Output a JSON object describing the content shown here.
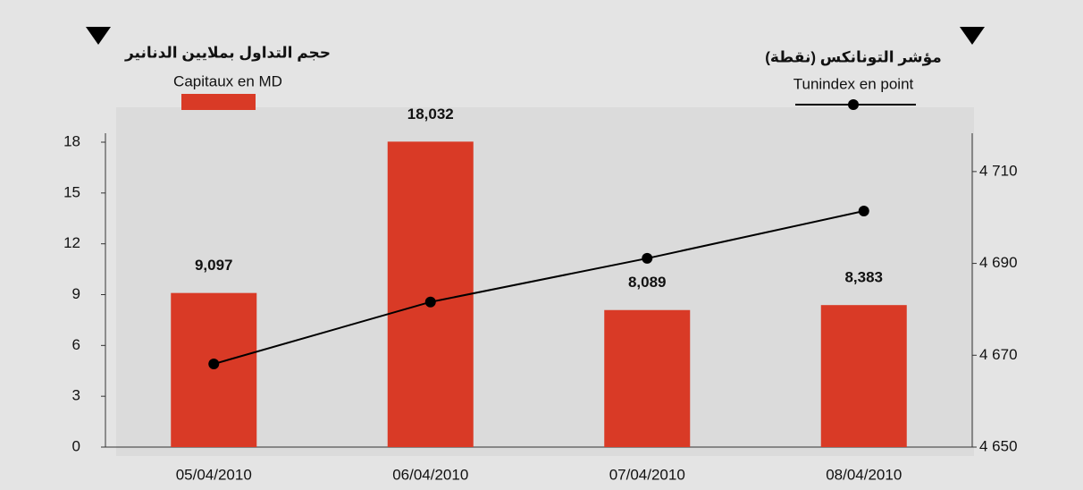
{
  "chart_data": {
    "type": "bar-line",
    "y_title": "حجم التداول بملايين الدنانير",
    "y2_title": "مؤشر التونانكس (نقطة)",
    "categories": [
      "05/04/2010",
      "06/04/2010",
      "07/04/2010",
      "08/04/2010"
    ],
    "series": [
      {
        "name": "Capitaux en MD",
        "type": "bar",
        "color": "#d93a26",
        "values": [
          9.097,
          18.032,
          8.089,
          8.383
        ],
        "value_labels": [
          "9,097",
          "18,032",
          "8,089",
          "8,383"
        ]
      },
      {
        "name": "Tunindex en point",
        "type": "line",
        "axis": "y2",
        "color": "#000000",
        "values": [
          4668.1,
          4681.6,
          4691.1,
          4701.4
        ]
      }
    ],
    "ylim": [
      0,
      18
    ],
    "yticks": [
      0,
      3,
      6,
      9,
      12,
      15,
      18
    ],
    "y2lim": [
      4650,
      4716.4
    ],
    "y2ticks": [
      {
        "value": 4650,
        "label": "4 650"
      },
      {
        "value": 4670,
        "label": "4 670"
      },
      {
        "value": 4690,
        "label": "4 690"
      },
      {
        "value": 4710,
        "label": "4 710"
      }
    ]
  }
}
